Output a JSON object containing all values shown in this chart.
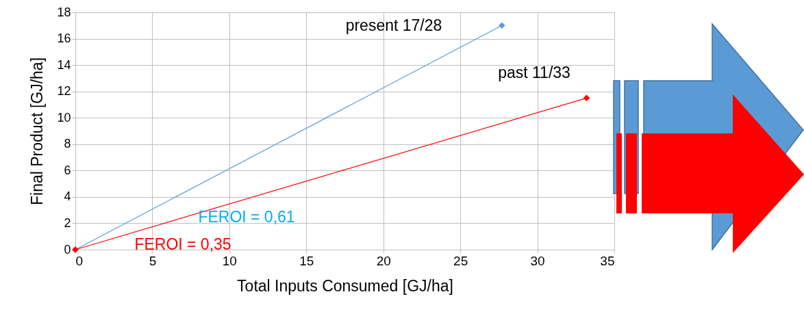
{
  "chart_data": {
    "type": "line",
    "xlabel": "Total Inputs Consumed [GJ/ha]",
    "ylabel": "Final Product [GJ/ha]",
    "series": [
      {
        "color": "#5b9bd5",
        "x": [
          0,
          27.7
        ],
        "values": [
          0,
          17
        ]
      },
      {
        "color": "#ff0000",
        "x": [
          0,
          33.2
        ],
        "values": [
          0,
          11.5
        ]
      }
    ],
    "xlim": [
      0,
      35
    ],
    "xticks": [
      0,
      5,
      10,
      15,
      20,
      25,
      30,
      35
    ],
    "ylim": [
      0,
      18
    ],
    "yticks": [
      0,
      2,
      4,
      6,
      8,
      10,
      12,
      14,
      16,
      18
    ],
    "grid": true,
    "marker": "diamond",
    "annotations": [
      "present 17/28",
      "past 11/33",
      "FEROI = 0,61",
      "FEROI = 0,35"
    ]
  }
}
